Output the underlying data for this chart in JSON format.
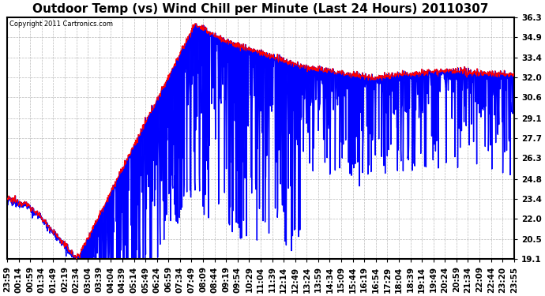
{
  "title": "Outdoor Temp (vs) Wind Chill per Minute (Last 24 Hours) 20110307",
  "copyright": "Copyright 2011 Cartronics.com",
  "yticks": [
    19.1,
    20.5,
    22.0,
    23.4,
    24.8,
    26.3,
    27.7,
    29.1,
    30.6,
    32.0,
    33.4,
    34.9,
    36.3
  ],
  "ylim": [
    19.1,
    36.3
  ],
  "xtick_labels": [
    "23:59",
    "00:14",
    "00:59",
    "01:34",
    "01:49",
    "02:19",
    "02:34",
    "03:04",
    "03:39",
    "04:04",
    "04:39",
    "05:14",
    "05:49",
    "06:24",
    "06:59",
    "07:34",
    "07:49",
    "08:09",
    "08:44",
    "09:19",
    "09:54",
    "10:29",
    "11:04",
    "11:39",
    "12:14",
    "12:49",
    "13:24",
    "13:59",
    "14:34",
    "15:09",
    "15:44",
    "16:19",
    "16:54",
    "17:29",
    "18:04",
    "18:39",
    "19:14",
    "19:49",
    "20:24",
    "20:59",
    "21:34",
    "22:09",
    "22:44",
    "23:20",
    "23:55"
  ],
  "line_color": "#FF0000",
  "fill_color": "#0000FF",
  "background_color": "#FFFFFF",
  "grid_color": "#AAAAAA",
  "title_fontsize": 11,
  "tick_fontsize": 7.5
}
